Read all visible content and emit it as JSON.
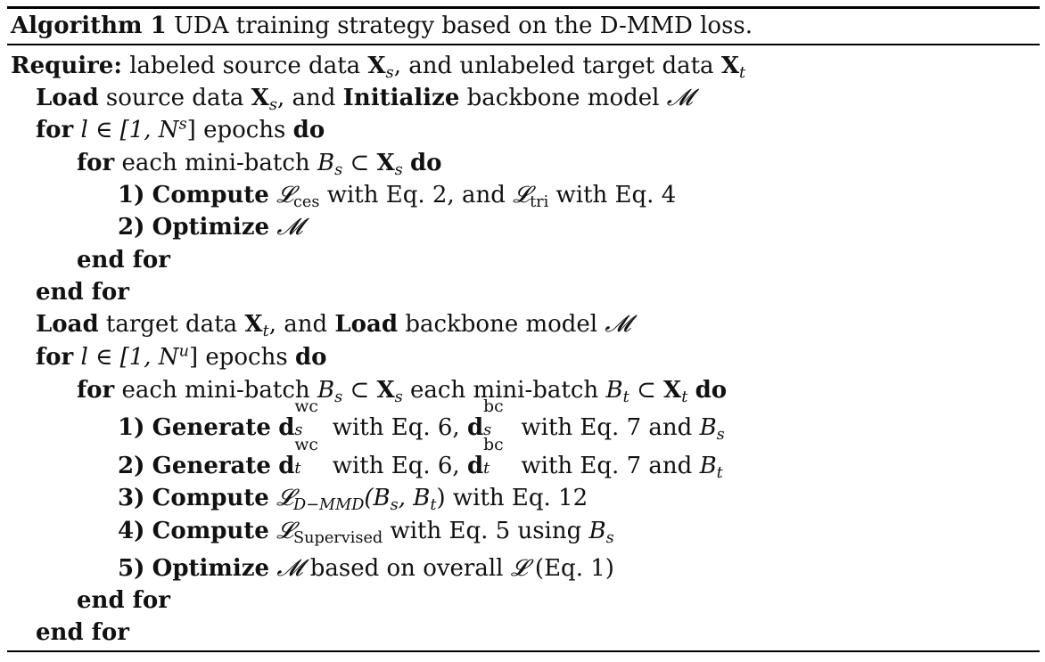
{
  "caption": {
    "label": "Algorithm 1",
    "text": "UDA training strategy based on the D-MMD loss."
  },
  "lines": {
    "require_kw": "Require:",
    "require_text1": "labeled source data",
    "require_text2": ", and unlabeled target data",
    "load1_kw": "Load",
    "load1_text": "source data",
    "load1_and": ", and",
    "load1_kw2": "Initialize",
    "load1_text2": "backbone model",
    "for1_kw": "for",
    "for1_epochs": "epochs",
    "do_kw": "do",
    "for_inner_text": "each mini-batch",
    "step1_num": "1)",
    "step1_kw": "Compute",
    "step1_text_a": "with Eq. 2, and",
    "step1_text_b": "with Eq. 4",
    "step2_num": "2)",
    "step2_kw": "Optimize",
    "endfor_kw": "end for",
    "load2_kw": "Load",
    "load2_text": "target data",
    "load2_and": ", and",
    "load2_kw2": "Load",
    "load2_text2": "backbone model",
    "for2_inner_mid": "each mini-batch",
    "g1_num": "1)",
    "g1_kw": "Generate",
    "g_with6": "with Eq. 6,",
    "g_with7": "with Eq. 7 and",
    "g2_num": "2)",
    "g2_kw": "Generate",
    "c3_num": "3)",
    "c3_kw": "Compute",
    "c3_text": "with Eq. 12",
    "c4_num": "4)",
    "c4_kw": "Compute",
    "c4_text": "with Eq. 5 using",
    "o5_num": "5)",
    "o5_kw": "Optimize",
    "o5_text": "based on overall",
    "o5_tail": "(Eq. 1)"
  },
  "math": {
    "X": "X",
    "s": "s",
    "t": "t",
    "M": "𝓜",
    "L": "𝓛",
    "for1_range": "l ∈ [1, N",
    "for1_sup": "s",
    "for2_sup": "u",
    "close": "]",
    "B": "B",
    "subset": "⊂",
    "ces": "ces",
    "tri": "tri",
    "d": "d",
    "wc": "wc",
    "bc": "bc",
    "dmmd_sub": "D−MMD",
    "dmmd_args": "(B",
    "comma": ", B",
    "rparen": ")",
    "supervised": "Supervised"
  }
}
